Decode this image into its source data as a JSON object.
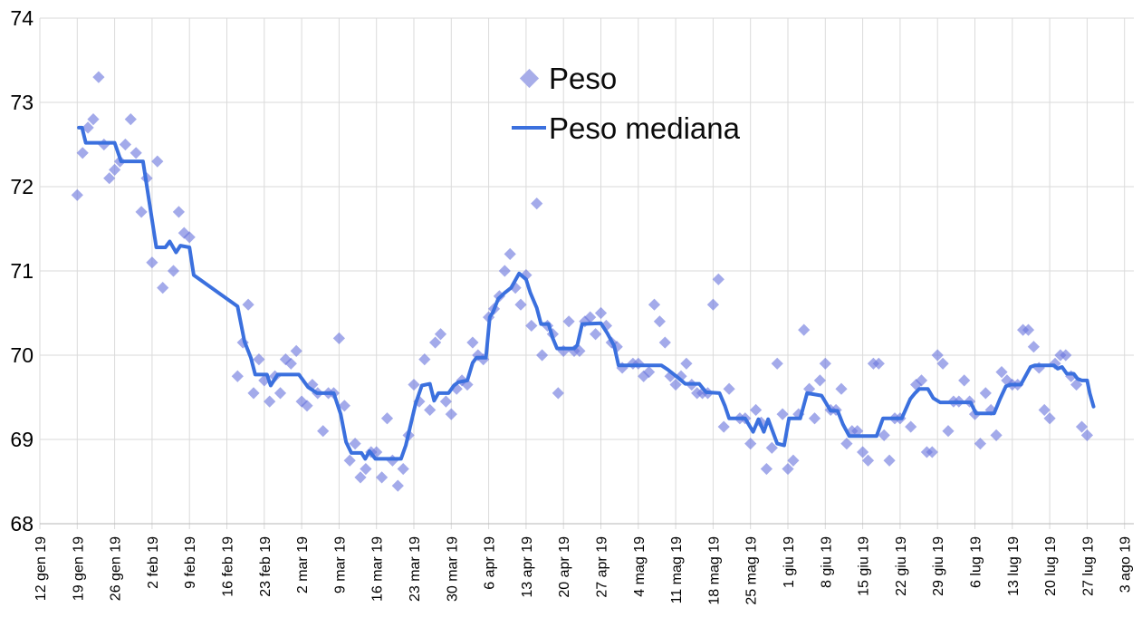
{
  "chart_data": {
    "type": "scatter",
    "subtype": "scatter-with-line-overlay",
    "title": "",
    "xlabel": "",
    "ylabel": "",
    "x_unit": "days since 12 gen 19",
    "x_axis": {
      "tick_interval_days": 7,
      "tick_labels": [
        "12 gen 19",
        "19 gen 19",
        "26 gen 19",
        "2 feb 19",
        "9 feb 19",
        "16 feb 19",
        "23 feb 19",
        "2 mar 19",
        "9 mar 19",
        "16 mar 19",
        "23 mar 19",
        "30 mar 19",
        "6 apr 19",
        "13 apr 19",
        "20 apr 19",
        "27 apr 19",
        "4 mag 19",
        "11 mag 19",
        "18 mag 19",
        "25 mag 19",
        "1 giu 19",
        "8 giu 19",
        "15 giu 19",
        "22 giu 19",
        "29 giu 19",
        "6 lug 19",
        "13 lug 19",
        "20 lug 19",
        "27 lug 19",
        "3 ago 19"
      ],
      "range_days": [
        0,
        204.5
      ]
    },
    "y_axis": {
      "ticks": [
        74,
        73,
        72,
        71,
        70,
        69,
        68
      ],
      "range": [
        68,
        74
      ]
    },
    "grid": true,
    "legend_position": "top-center-inside",
    "series": [
      {
        "name": "Peso",
        "type": "scatter",
        "marker": "diamond",
        "color": "#6b76dd",
        "marker_opacity": 0.62,
        "points": [
          [
            7,
            71.9
          ],
          [
            8,
            72.4
          ],
          [
            9,
            72.7
          ],
          [
            10,
            72.8
          ],
          [
            11,
            73.3
          ],
          [
            12,
            72.5
          ],
          [
            13,
            72.1
          ],
          [
            14,
            72.2
          ],
          [
            15,
            72.3
          ],
          [
            16,
            72.5
          ],
          [
            17,
            72.8
          ],
          [
            18,
            72.4
          ],
          [
            19,
            71.7
          ],
          [
            20,
            72.1
          ],
          [
            21,
            71.1
          ],
          [
            22,
            72.3
          ],
          [
            23,
            70.8
          ],
          [
            25,
            71.0
          ],
          [
            26,
            71.7
          ],
          [
            27,
            71.45
          ],
          [
            28,
            71.4
          ],
          [
            37,
            69.75
          ],
          [
            38,
            70.15
          ],
          [
            39,
            70.6
          ],
          [
            40,
            69.55
          ],
          [
            41,
            69.95
          ],
          [
            42,
            69.7
          ],
          [
            43,
            69.45
          ],
          [
            44,
            69.75
          ],
          [
            45,
            69.55
          ],
          [
            46,
            69.95
          ],
          [
            47,
            69.9
          ],
          [
            48,
            70.05
          ],
          [
            49,
            69.45
          ],
          [
            50,
            69.4
          ],
          [
            51,
            69.65
          ],
          [
            52,
            69.55
          ],
          [
            53,
            69.1
          ],
          [
            54,
            69.55
          ],
          [
            55,
            69.55
          ],
          [
            56,
            70.2
          ],
          [
            57,
            69.4
          ],
          [
            58,
            68.75
          ],
          [
            59,
            68.95
          ],
          [
            60,
            68.55
          ],
          [
            61,
            68.65
          ],
          [
            62,
            68.85
          ],
          [
            63,
            68.85
          ],
          [
            64,
            68.55
          ],
          [
            65,
            69.25
          ],
          [
            66,
            68.75
          ],
          [
            67,
            68.45
          ],
          [
            68,
            68.65
          ],
          [
            69,
            69.05
          ],
          [
            70,
            69.65
          ],
          [
            71,
            69.45
          ],
          [
            72,
            69.95
          ],
          [
            73,
            69.35
          ],
          [
            74,
            70.15
          ],
          [
            75,
            70.25
          ],
          [
            76,
            69.45
          ],
          [
            77,
            69.3
          ],
          [
            78,
            69.6
          ],
          [
            79,
            69.7
          ],
          [
            80,
            69.65
          ],
          [
            81,
            70.15
          ],
          [
            82,
            70.0
          ],
          [
            83,
            69.95
          ],
          [
            84,
            70.45
          ],
          [
            85,
            70.55
          ],
          [
            86,
            70.7
          ],
          [
            87,
            71.0
          ],
          [
            88,
            71.2
          ],
          [
            89,
            70.8
          ],
          [
            90,
            70.6
          ],
          [
            91,
            70.95
          ],
          [
            92,
            70.35
          ],
          [
            93,
            71.8
          ],
          [
            94,
            70.0
          ],
          [
            95,
            70.35
          ],
          [
            96,
            70.25
          ],
          [
            97,
            69.55
          ],
          [
            98,
            70.05
          ],
          [
            99,
            70.4
          ],
          [
            100,
            70.05
          ],
          [
            101,
            70.05
          ],
          [
            102,
            70.4
          ],
          [
            103,
            70.45
          ],
          [
            104,
            70.25
          ],
          [
            105,
            70.5
          ],
          [
            106,
            70.35
          ],
          [
            107,
            70.15
          ],
          [
            108,
            70.1
          ],
          [
            109,
            69.85
          ],
          [
            111,
            69.9
          ],
          [
            112,
            69.9
          ],
          [
            113,
            69.75
          ],
          [
            114,
            69.8
          ],
          [
            115,
            70.6
          ],
          [
            116,
            70.4
          ],
          [
            117,
            70.15
          ],
          [
            118,
            69.75
          ],
          [
            119,
            69.65
          ],
          [
            120,
            69.75
          ],
          [
            121,
            69.9
          ],
          [
            122,
            69.65
          ],
          [
            123,
            69.55
          ],
          [
            124,
            69.55
          ],
          [
            125,
            69.55
          ],
          [
            126,
            70.6
          ],
          [
            127,
            70.9
          ],
          [
            128,
            69.15
          ],
          [
            129,
            69.6
          ],
          [
            131,
            69.25
          ],
          [
            132,
            69.25
          ],
          [
            133,
            68.95
          ],
          [
            134,
            69.35
          ],
          [
            135,
            69.2
          ],
          [
            136,
            68.65
          ],
          [
            137,
            68.9
          ],
          [
            138,
            69.9
          ],
          [
            139,
            69.3
          ],
          [
            140,
            68.65
          ],
          [
            141,
            68.75
          ],
          [
            142,
            69.3
          ],
          [
            143,
            70.3
          ],
          [
            144,
            69.6
          ],
          [
            145,
            69.25
          ],
          [
            146,
            69.7
          ],
          [
            147,
            69.9
          ],
          [
            148,
            69.35
          ],
          [
            149,
            69.35
          ],
          [
            150,
            69.6
          ],
          [
            151,
            68.95
          ],
          [
            152,
            69.1
          ],
          [
            153,
            69.1
          ],
          [
            154,
            68.85
          ],
          [
            155,
            68.75
          ],
          [
            156,
            69.9
          ],
          [
            157,
            69.9
          ],
          [
            158,
            69.05
          ],
          [
            159,
            68.75
          ],
          [
            160,
            69.25
          ],
          [
            161,
            69.25
          ],
          [
            163,
            69.15
          ],
          [
            164,
            69.65
          ],
          [
            165,
            69.7
          ],
          [
            166,
            68.85
          ],
          [
            167,
            68.85
          ],
          [
            168,
            70.0
          ],
          [
            169,
            69.9
          ],
          [
            170,
            69.1
          ],
          [
            171,
            69.45
          ],
          [
            172,
            69.45
          ],
          [
            173,
            69.7
          ],
          [
            174,
            69.45
          ],
          [
            175,
            69.3
          ],
          [
            176,
            68.95
          ],
          [
            177,
            69.55
          ],
          [
            178,
            69.35
          ],
          [
            179,
            69.05
          ],
          [
            180,
            69.8
          ],
          [
            181,
            69.7
          ],
          [
            182,
            69.65
          ],
          [
            183,
            69.65
          ],
          [
            184,
            70.3
          ],
          [
            185,
            70.3
          ],
          [
            186,
            70.1
          ],
          [
            187,
            69.85
          ],
          [
            188,
            69.35
          ],
          [
            189,
            69.25
          ],
          [
            190,
            69.9
          ],
          [
            191,
            70.0
          ],
          [
            192,
            70.0
          ],
          [
            193,
            69.75
          ],
          [
            194,
            69.65
          ],
          [
            195,
            69.15
          ],
          [
            196,
            69.05
          ]
        ]
      },
      {
        "name": "Peso mediana",
        "type": "line",
        "color": "#3b70de",
        "stroke_width": 4,
        "points": [
          [
            7.3,
            72.7
          ],
          [
            7.9,
            72.7
          ],
          [
            8.6,
            72.52
          ],
          [
            14,
            72.52
          ],
          [
            15.2,
            72.3
          ],
          [
            19.3,
            72.3
          ],
          [
            21.8,
            71.28
          ],
          [
            23.5,
            71.28
          ],
          [
            24.3,
            71.35
          ],
          [
            25.5,
            71.22
          ],
          [
            26.3,
            71.3
          ],
          [
            28,
            71.28
          ],
          [
            28.8,
            70.95
          ],
          [
            37,
            70.58
          ],
          [
            38.3,
            70.16
          ],
          [
            39.5,
            69.97
          ],
          [
            40.3,
            69.77
          ],
          [
            42.5,
            69.77
          ],
          [
            43.2,
            69.64
          ],
          [
            44.5,
            69.77
          ],
          [
            48.5,
            69.77
          ],
          [
            50.2,
            69.62
          ],
          [
            51.9,
            69.55
          ],
          [
            55,
            69.55
          ],
          [
            56.3,
            69.3
          ],
          [
            57.3,
            68.97
          ],
          [
            58.3,
            68.84
          ],
          [
            60.2,
            68.84
          ],
          [
            60.9,
            68.77
          ],
          [
            61.7,
            68.86
          ],
          [
            62.8,
            68.77
          ],
          [
            67.6,
            68.77
          ],
          [
            68.5,
            68.93
          ],
          [
            69.5,
            69.2
          ],
          [
            70.3,
            69.42
          ],
          [
            71.5,
            69.64
          ],
          [
            73,
            69.66
          ],
          [
            73.8,
            69.46
          ],
          [
            74.6,
            69.55
          ],
          [
            76.5,
            69.55
          ],
          [
            77.5,
            69.64
          ],
          [
            78.3,
            69.68
          ],
          [
            80,
            69.7
          ],
          [
            81,
            69.91
          ],
          [
            81.7,
            69.97
          ],
          [
            83.5,
            69.97
          ],
          [
            84.2,
            70.45
          ],
          [
            84.8,
            70.51
          ],
          [
            85.8,
            70.67
          ],
          [
            87,
            70.74
          ],
          [
            88.2,
            70.8
          ],
          [
            89.7,
            70.97
          ],
          [
            91,
            70.9
          ],
          [
            91.8,
            70.74
          ],
          [
            93,
            70.56
          ],
          [
            93.8,
            70.37
          ],
          [
            95.2,
            70.37
          ],
          [
            96,
            70.2
          ],
          [
            96.8,
            70.08
          ],
          [
            100,
            70.08
          ],
          [
            100.6,
            70.12
          ],
          [
            101.5,
            70.37
          ],
          [
            105,
            70.38
          ],
          [
            106.2,
            70.26
          ],
          [
            107.5,
            70.11
          ],
          [
            108.3,
            69.88
          ],
          [
            116.3,
            69.88
          ],
          [
            117.5,
            69.83
          ],
          [
            119.3,
            69.74
          ],
          [
            120.8,
            69.66
          ],
          [
            123.4,
            69.66
          ],
          [
            124.7,
            69.56
          ],
          [
            127.2,
            69.55
          ],
          [
            128.2,
            69.4
          ],
          [
            129,
            69.25
          ],
          [
            132,
            69.25
          ],
          [
            133.5,
            69.09
          ],
          [
            134.5,
            69.24
          ],
          [
            135.5,
            69.09
          ],
          [
            136.3,
            69.24
          ],
          [
            138,
            68.95
          ],
          [
            139.3,
            68.93
          ],
          [
            140.2,
            69.25
          ],
          [
            142.3,
            69.25
          ],
          [
            143.6,
            69.55
          ],
          [
            146.3,
            69.52
          ],
          [
            148,
            69.34
          ],
          [
            149.3,
            69.34
          ],
          [
            150.3,
            69.18
          ],
          [
            151.5,
            69.04
          ],
          [
            156.6,
            69.04
          ],
          [
            157.8,
            69.25
          ],
          [
            161.3,
            69.25
          ],
          [
            162.9,
            69.48
          ],
          [
            163.8,
            69.55
          ],
          [
            164.6,
            69.6
          ],
          [
            166.2,
            69.6
          ],
          [
            167.2,
            69.49
          ],
          [
            168.5,
            69.44
          ],
          [
            174.2,
            69.44
          ],
          [
            175.2,
            69.31
          ],
          [
            178.6,
            69.31
          ],
          [
            179.7,
            69.48
          ],
          [
            180.8,
            69.63
          ],
          [
            181.7,
            69.65
          ],
          [
            183.6,
            69.65
          ],
          [
            185.4,
            69.86
          ],
          [
            186.2,
            69.88
          ],
          [
            189.8,
            69.88
          ],
          [
            190.5,
            69.84
          ],
          [
            191.3,
            69.86
          ],
          [
            192.2,
            69.78
          ],
          [
            193.5,
            69.78
          ],
          [
            194.2,
            69.72
          ],
          [
            195,
            69.7
          ],
          [
            196,
            69.7
          ],
          [
            196.5,
            69.55
          ],
          [
            197.2,
            69.39
          ]
        ]
      }
    ]
  },
  "legend": {
    "items": [
      {
        "label": "Peso",
        "marker": "diamond-marker-icon"
      },
      {
        "label": "Peso mediana",
        "marker": "line-marker-icon"
      }
    ]
  },
  "colors": {
    "background": "#ffffff",
    "grid": "#dadada",
    "axis": "#b7b7b7",
    "text": "#000000",
    "scatter": "#6b76dd",
    "line": "#3b70de"
  }
}
